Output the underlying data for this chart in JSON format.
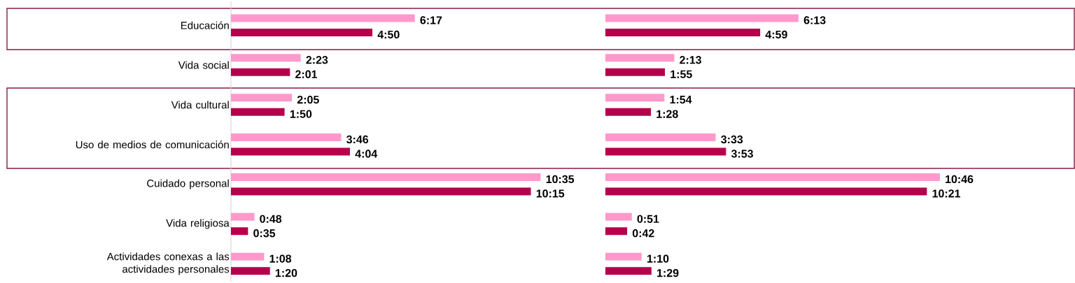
{
  "chart_data": [
    {
      "type": "bar",
      "orientation": "horizontal",
      "tick_labels": "y",
      "categories": [
        "Educación",
        "Vida social",
        "Vida cultural",
        "Uso de medios de comunicación",
        "Cuidado personal",
        "Vida religiosa",
        "Actividades conexas a las actividades personales"
      ],
      "series": [
        {
          "color": "#ff99cc",
          "values": [
            6.2833,
            2.3833,
            2.0833,
            3.7667,
            10.5833,
            0.8,
            1.1333
          ],
          "value_labels": [
            "6:17",
            "2:23",
            "2:05",
            "3:46",
            "10:35",
            "0:48",
            "1:08"
          ]
        },
        {
          "color": "#b5004b",
          "values": [
            4.8333,
            2.0167,
            1.8333,
            4.0667,
            10.25,
            0.5833,
            1.3333
          ],
          "value_labels": [
            "4:50",
            "2:01",
            "1:50",
            "4:04",
            "10:15",
            "0:35",
            "1:20"
          ]
        }
      ]
    },
    {
      "type": "bar",
      "orientation": "horizontal",
      "tick_labels": false,
      "categories": [
        null,
        null,
        null,
        null,
        null,
        null,
        null
      ],
      "series": [
        {
          "color": "#ff99cc",
          "values": [
            6.2167,
            2.2167,
            1.9,
            3.55,
            10.7667,
            0.85,
            1.1667
          ],
          "value_labels": [
            "6:13",
            "2:13",
            "1:54",
            "3:33",
            "10:46",
            "0:51",
            "1:10"
          ]
        },
        {
          "color": "#b5004b",
          "values": [
            4.9833,
            1.9167,
            1.4667,
            3.8833,
            10.35,
            0.7,
            1.4833
          ],
          "value_labels": [
            "4:59",
            "1:55",
            "1:28",
            "3:53",
            "10:21",
            "0:42",
            "1:29"
          ]
        }
      ]
    }
  ]
}
